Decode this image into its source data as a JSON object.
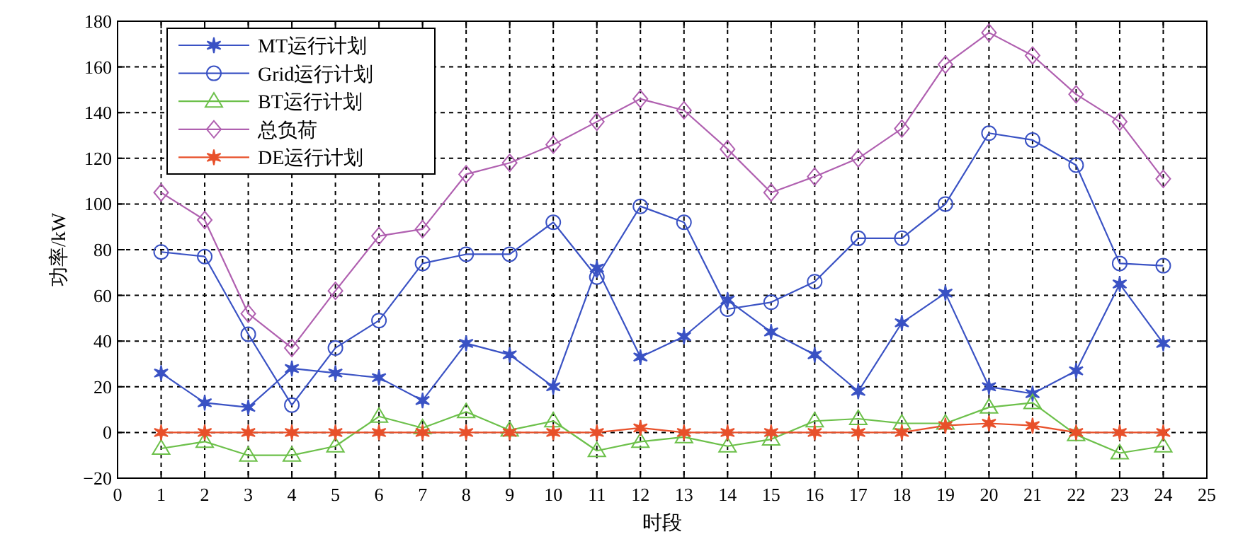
{
  "chart_data": {
    "type": "line",
    "xlabel": "时段",
    "ylabel": "功率/kW",
    "x": [
      1,
      2,
      3,
      4,
      5,
      6,
      7,
      8,
      9,
      10,
      11,
      12,
      13,
      14,
      15,
      16,
      17,
      18,
      19,
      20,
      21,
      22,
      23,
      24
    ],
    "xlim": [
      0,
      25
    ],
    "xticks": [
      0,
      1,
      2,
      3,
      4,
      5,
      6,
      7,
      8,
      9,
      10,
      11,
      12,
      13,
      14,
      15,
      16,
      17,
      18,
      19,
      20,
      21,
      22,
      23,
      24,
      25
    ],
    "ylim": [
      -20,
      180
    ],
    "yticks": [
      {
        "value": -20,
        "label": "−20"
      },
      0,
      20,
      40,
      60,
      80,
      100,
      120,
      140,
      160,
      180
    ],
    "grid": true,
    "legend": "top left",
    "line_style": "solid",
    "series": [
      {
        "name": "MT运行计划",
        "color": "#3a52c4",
        "marker": "cross",
        "values": [
          26,
          13,
          11,
          28,
          26,
          24,
          14,
          39,
          34,
          20,
          72,
          33,
          42,
          58,
          44,
          34,
          18,
          48,
          61,
          20,
          17,
          27,
          65,
          39
        ]
      },
      {
        "name": "Grid运行计划",
        "color": "#3a52c4",
        "marker": "circle",
        "values": [
          79,
          77,
          43,
          12,
          37,
          49,
          74,
          78,
          78,
          92,
          68,
          99,
          92,
          54,
          57,
          66,
          85,
          85,
          100,
          131,
          128,
          117,
          74,
          73
        ]
      },
      {
        "name": "BT运行计划",
        "color": "#6cc04a",
        "marker": "triangle",
        "values": [
          -7,
          -4,
          -10,
          -10,
          -6,
          7,
          2,
          9,
          1,
          5,
          -8,
          -4,
          -2,
          -6,
          -3,
          5,
          6,
          4,
          4,
          11,
          13,
          -1,
          -9,
          -6
        ]
      },
      {
        "name": "总负荷",
        "color": "#b060b0",
        "marker": "diamond",
        "values": [
          105,
          93,
          52,
          37,
          62,
          86,
          89,
          113,
          118,
          126,
          136,
          146,
          141,
          124,
          105,
          112,
          120,
          133,
          161,
          175,
          165,
          148,
          136,
          111
        ]
      },
      {
        "name": "DE运行计划",
        "color": "#e8502a",
        "marker": "cross",
        "values": [
          0,
          0,
          0,
          0,
          0,
          0,
          0,
          0,
          0,
          0,
          0,
          2,
          0,
          0,
          0,
          0,
          0,
          0,
          3,
          4,
          3,
          0,
          0,
          0
        ]
      }
    ]
  }
}
